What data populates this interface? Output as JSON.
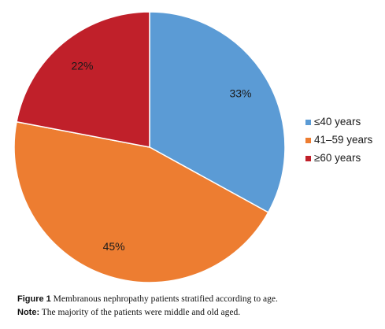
{
  "chart_data": {
    "type": "pie",
    "categories": [
      "≤40 years",
      "41–59 years",
      "≥60 years"
    ],
    "values": [
      33,
      45,
      22
    ],
    "labels": [
      "33%",
      "45%",
      "22%"
    ],
    "colors": [
      "#5b9bd5",
      "#ed7d31",
      "#c0202a"
    ],
    "start_angle_deg": 0,
    "direction": "clockwise",
    "legend_position": "right"
  },
  "caption": {
    "figure_label": "Figure 1",
    "figure_text": "Membranous nephropathy patients stratified according to age.",
    "note_label": "Note:",
    "note_text": "The majority of the patients were middle and old aged."
  }
}
